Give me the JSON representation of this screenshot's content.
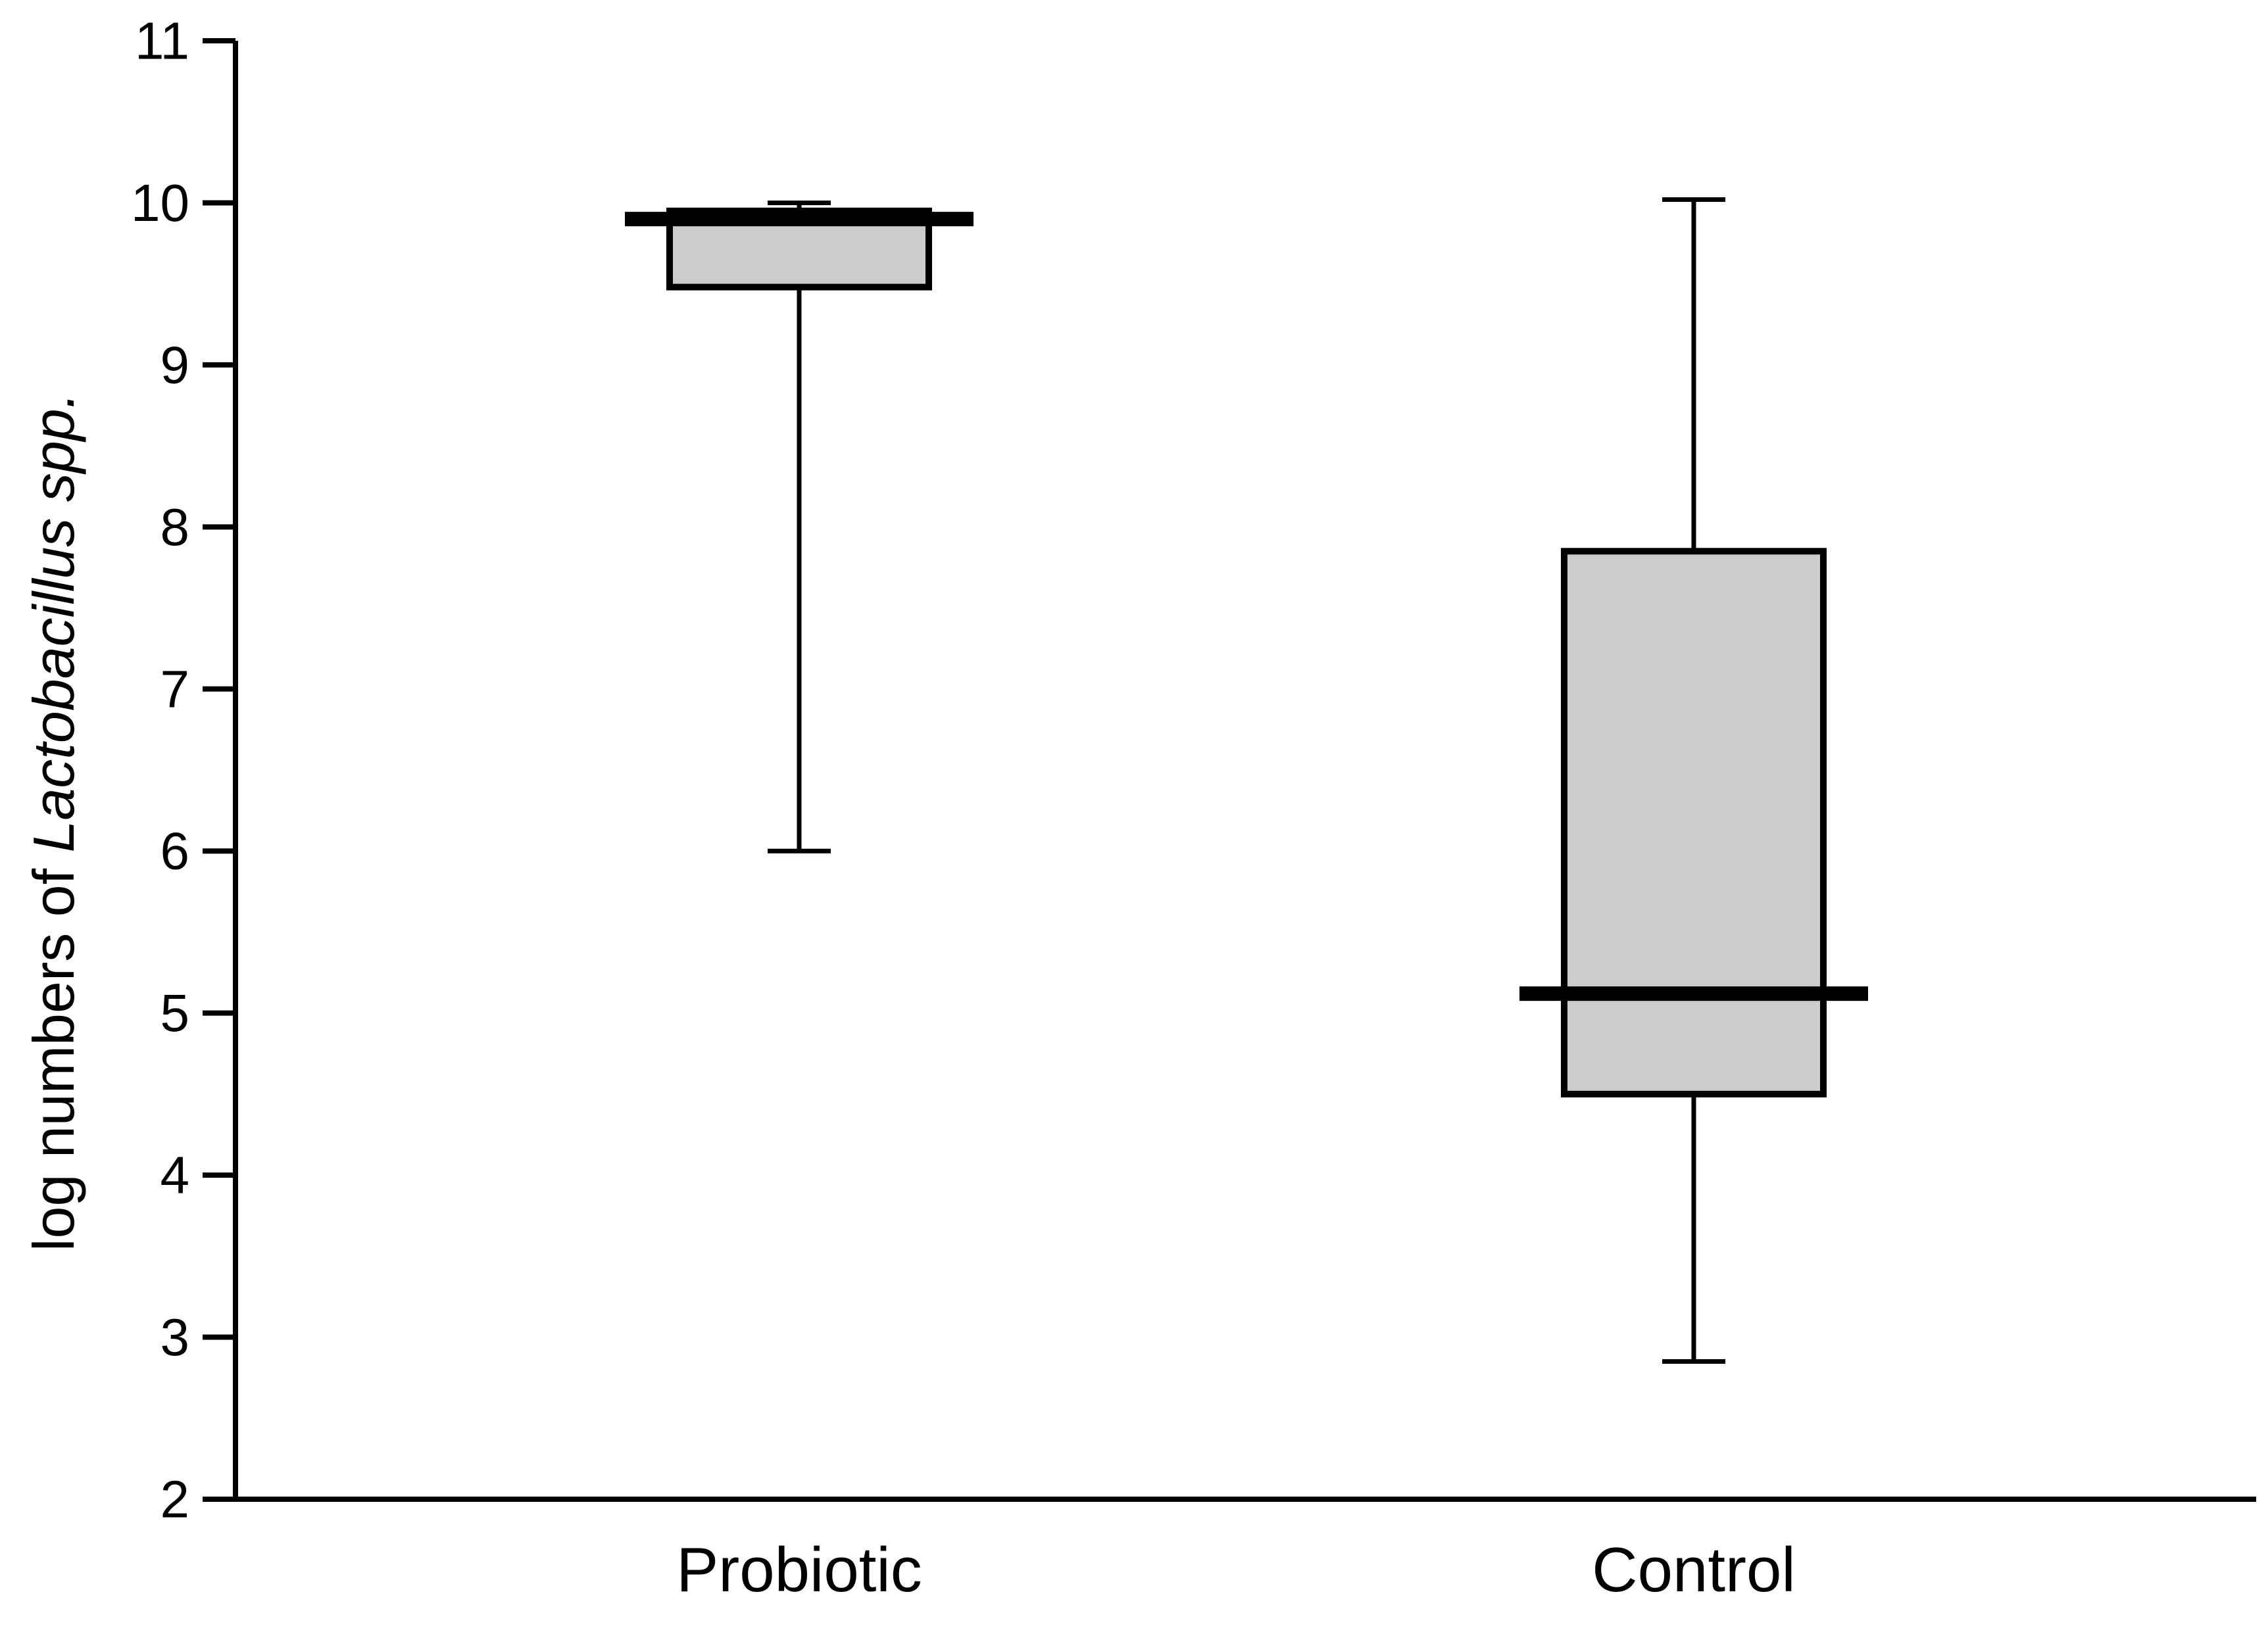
{
  "chart_data": {
    "type": "box",
    "ylabel_prefix": "log numbers of ",
    "ylabel_italic": "Lactobacillus spp.",
    "ylim": [
      2,
      11
    ],
    "yticks": [
      2,
      3,
      4,
      5,
      6,
      7,
      8,
      9,
      10,
      11
    ],
    "categories": [
      "Probiotic",
      "Control"
    ],
    "boxes": [
      {
        "category": "Probiotic",
        "min": 6.0,
        "q1": 9.48,
        "median": 9.9,
        "q3": 9.95,
        "max": 10.0
      },
      {
        "category": "Control",
        "min": 2.85,
        "q1": 4.5,
        "median": 5.12,
        "q3": 7.85,
        "max": 10.02
      }
    ],
    "grid": false,
    "colors": {
      "box_fill": "#cccccc",
      "stroke": "#000000"
    }
  }
}
